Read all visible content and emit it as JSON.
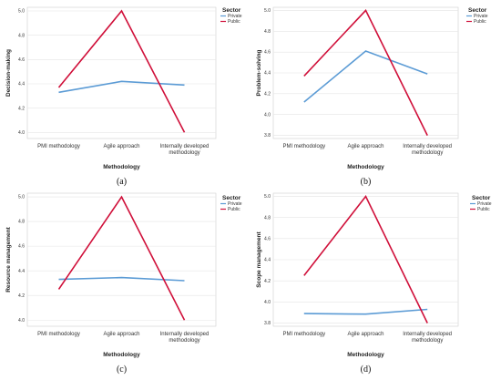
{
  "figure": {
    "panel_labels": [
      "(a)",
      "(b)",
      "(c)",
      "(d)"
    ]
  },
  "colors": {
    "Private": "#5b9bd5",
    "Public": "#d0103a",
    "grid": "#e5e5e5"
  },
  "chart_data": [
    {
      "type": "line",
      "title": "",
      "xlabel": "Methodology",
      "ylabel": "Decision-making",
      "categories": [
        "PMI methodology",
        "Agile approach",
        "Internally developed methodology"
      ],
      "ylim": [
        3.95,
        5.03
      ],
      "yticks": [
        "4.0",
        "4.2",
        "4.4",
        "4.6",
        "4.8",
        "5.0"
      ],
      "legend_title": "Sector",
      "legend_position": "top-right",
      "series": [
        {
          "name": "Private",
          "values": [
            4.33,
            4.42,
            4.39
          ]
        },
        {
          "name": "Public",
          "values": [
            4.37,
            5.0,
            4.0
          ]
        }
      ]
    },
    {
      "type": "line",
      "title": "",
      "xlabel": "Methodology",
      "ylabel": "Problem-solving",
      "categories": [
        "PMI methodology",
        "Agile approach",
        "Internally developed methodology"
      ],
      "ylim": [
        3.77,
        5.03
      ],
      "yticks": [
        "3.8",
        "4.0",
        "4.2",
        "4.4",
        "4.6",
        "4.8",
        "5.0"
      ],
      "legend_title": "Sector",
      "legend_position": "top-right",
      "series": [
        {
          "name": "Private",
          "values": [
            4.12,
            4.61,
            4.39
          ]
        },
        {
          "name": "Public",
          "values": [
            4.37,
            5.0,
            3.8
          ]
        }
      ]
    },
    {
      "type": "line",
      "title": "",
      "xlabel": "Methodology",
      "ylabel": "Resource management",
      "categories": [
        "PMI methodology",
        "Agile approach",
        "Internally developed methodology"
      ],
      "ylim": [
        3.95,
        5.03
      ],
      "yticks": [
        "4.0",
        "4.2",
        "4.4",
        "4.6",
        "4.8",
        "5.0"
      ],
      "legend_title": "Sector",
      "legend_position": "top-right",
      "series": [
        {
          "name": "Private",
          "values": [
            4.33,
            4.345,
            4.32
          ]
        },
        {
          "name": "Public",
          "values": [
            4.25,
            5.0,
            4.0
          ]
        }
      ]
    },
    {
      "type": "line",
      "title": "",
      "xlabel": "Methodology",
      "ylabel": "Scope management",
      "categories": [
        "PMI methodology",
        "Agile approach",
        "Internally developed methodology"
      ],
      "ylim": [
        3.77,
        5.03
      ],
      "yticks": [
        "3.8",
        "4.0",
        "4.2",
        "4.4",
        "4.6",
        "4.8",
        "5.0"
      ],
      "legend_title": "Sector",
      "legend_position": "top-right",
      "series": [
        {
          "name": "Private",
          "values": [
            3.89,
            3.885,
            3.93
          ]
        },
        {
          "name": "Public",
          "values": [
            4.25,
            5.0,
            3.8
          ]
        }
      ]
    }
  ]
}
